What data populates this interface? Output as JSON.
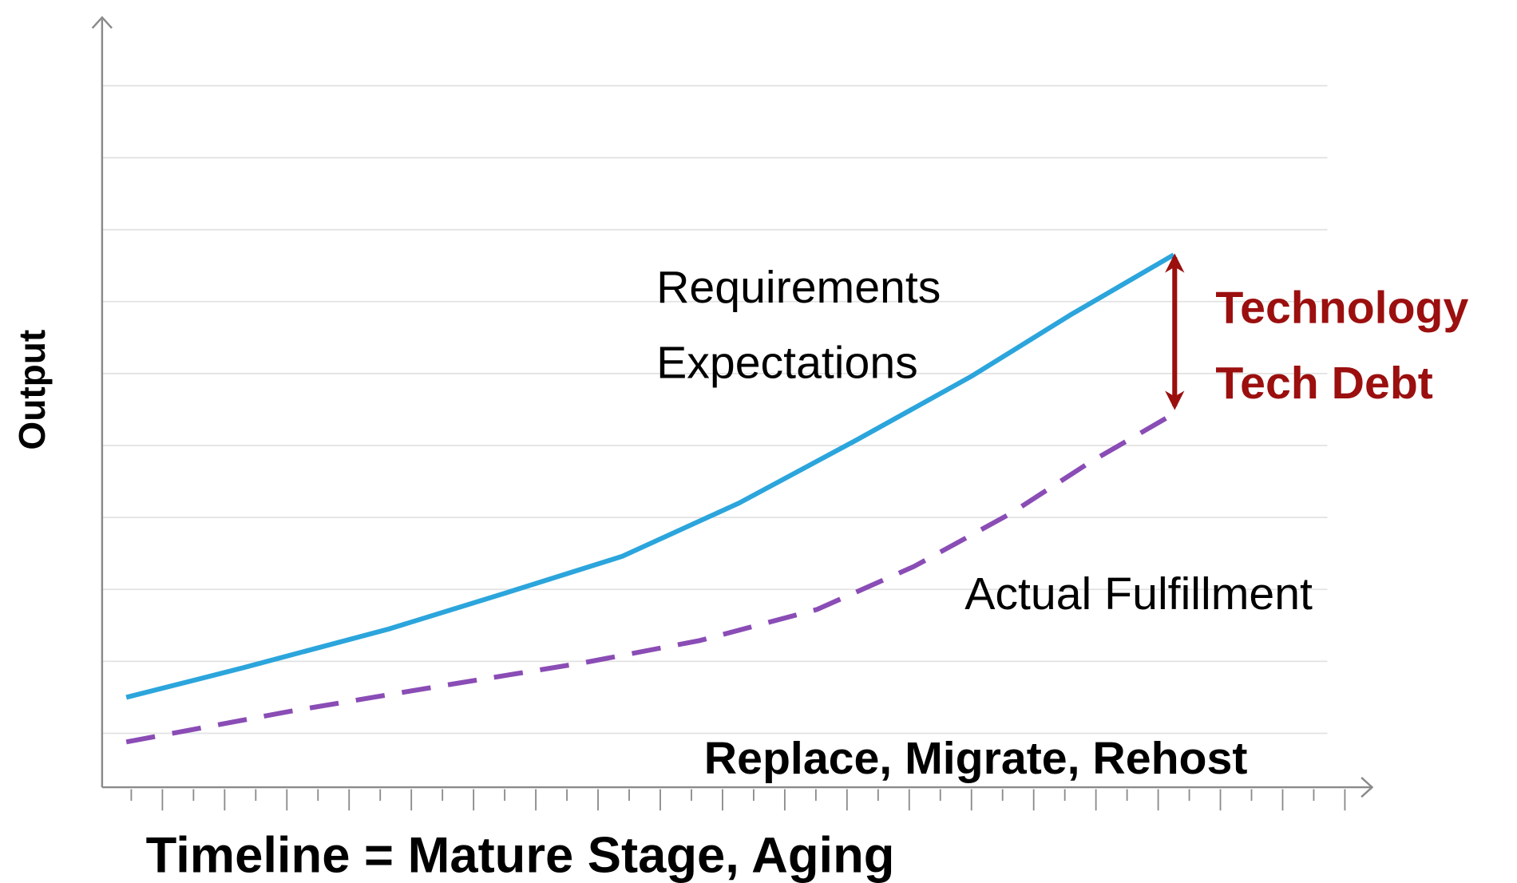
{
  "chart_data": {
    "type": "line",
    "x_label": "Timeline = Mature Stage, Aging",
    "y_label": "Output",
    "annotations": [
      "Requirements",
      "Expectations",
      "Technology",
      "Tech Debt",
      "Actual Fulfillment",
      "Replace, Migrate, Rehost"
    ],
    "xlim": [
      0,
      41
    ],
    "ylim": [
      0.25,
      10.95
    ],
    "xticks": [
      1,
      2,
      3,
      4,
      5,
      6,
      7,
      8,
      9,
      10,
      11,
      12,
      13,
      14,
      15,
      16,
      17,
      18,
      19,
      20,
      21,
      22,
      23,
      24,
      25,
      26,
      27,
      28,
      29,
      30,
      31,
      32,
      33,
      34,
      35,
      36,
      37,
      38,
      39,
      40
    ],
    "yticks": [
      1,
      2,
      3,
      4,
      5,
      6,
      7,
      8,
      9,
      10
    ],
    "grid": true,
    "series": [
      {
        "color": "#2ba5dc",
        "dashed": false,
        "x": [
          0.84,
          4.59,
          9.28,
          13.03,
          16.78,
          20.53,
          24.28,
          28.03,
          31.16,
          34.5
        ],
        "values": [
          1.5,
          1.91,
          2.45,
          2.95,
          3.46,
          4.2,
          5.07,
          5.97,
          6.81,
          7.65
        ]
      },
      {
        "color": "#8a4cb5",
        "dashed": true,
        "x": [
          0.84,
          6.16,
          10.84,
          15.53,
          19.28,
          23.03,
          26.16,
          29.28,
          31.78,
          34.5
        ],
        "values": [
          0.88,
          1.31,
          1.65,
          1.98,
          2.29,
          2.72,
          3.32,
          4.06,
          4.76,
          5.44
        ]
      }
    ]
  }
}
